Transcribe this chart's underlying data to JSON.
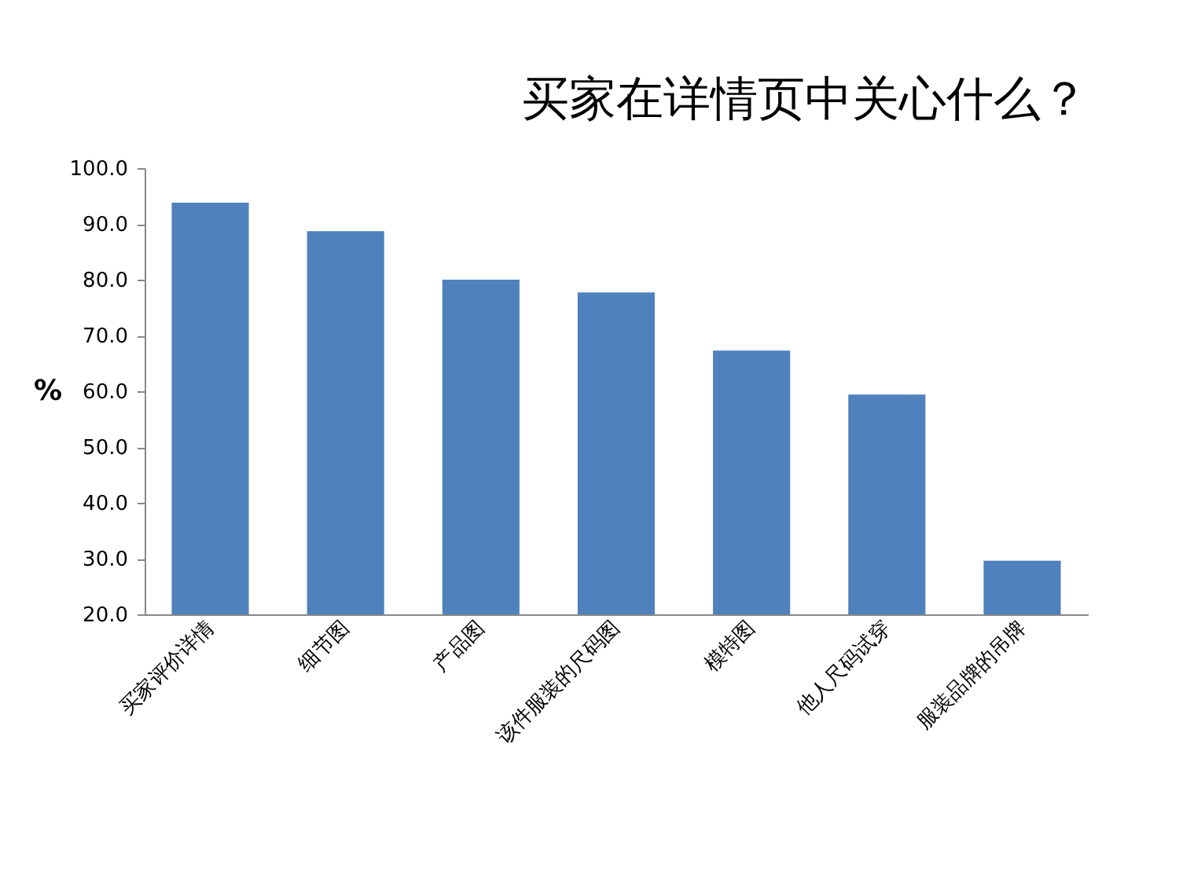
{
  "chart_data": {
    "type": "bar",
    "title": "买家在详情页中关心什么？",
    "ylabel": "%",
    "categories": [
      "买家评价详情",
      "细节图",
      "产品图",
      "该件服装的尺码图",
      "模特图",
      "他人尺码试穿",
      "服装品牌的吊牌"
    ],
    "values": [
      93.8,
      88.7,
      80.0,
      77.7,
      67.3,
      59.4,
      29.6
    ],
    "color": "#4f81bd",
    "ylim": [
      20,
      100
    ],
    "yticks": [
      {
        "value": 20,
        "label": "20.0"
      },
      {
        "value": 30,
        "label": "30.0"
      },
      {
        "value": 40,
        "label": "40.0"
      },
      {
        "value": 50,
        "label": "50.0"
      },
      {
        "value": 60,
        "label": "60.0"
      },
      {
        "value": 70,
        "label": "70.0"
      },
      {
        "value": 80,
        "label": "80.0"
      },
      {
        "value": 90,
        "label": "90.0"
      },
      {
        "value": 100,
        "label": "100.0"
      }
    ],
    "grid": false
  }
}
